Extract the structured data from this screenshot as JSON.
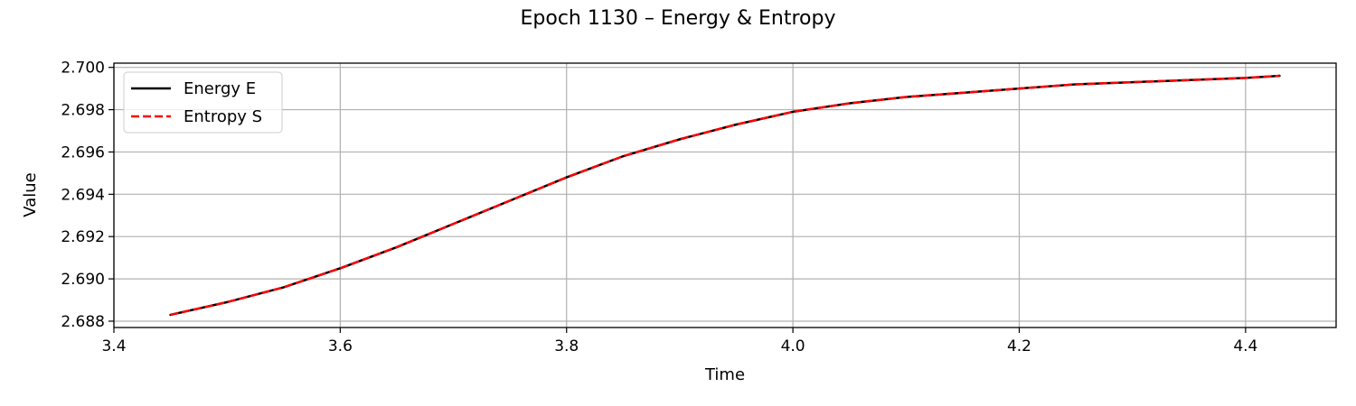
{
  "chart_data": {
    "type": "line",
    "title": "Epoch 1130 – Energy & Entropy",
    "xlabel": "Time",
    "ylabel": "Value",
    "xlim": [
      3.4,
      4.48
    ],
    "ylim": [
      2.6877,
      2.7002
    ],
    "xticks": [
      3.4,
      3.6,
      3.8,
      4.0,
      4.2,
      4.4
    ],
    "xtick_labels": [
      "3.4",
      "3.6",
      "3.8",
      "4.0",
      "4.2",
      "4.4"
    ],
    "yticks": [
      2.688,
      2.69,
      2.692,
      2.694,
      2.696,
      2.698,
      2.7
    ],
    "ytick_labels": [
      "2.688",
      "2.690",
      "2.692",
      "2.694",
      "2.696",
      "2.698",
      "2.700"
    ],
    "grid": true,
    "legend_position": "top-left",
    "series": [
      {
        "name": "Energy E",
        "color": "#000000",
        "style": "solid",
        "x": [
          3.45,
          3.5,
          3.55,
          3.6,
          3.65,
          3.7,
          3.75,
          3.8,
          3.85,
          3.9,
          3.95,
          4.0,
          4.05,
          4.1,
          4.15,
          4.2,
          4.25,
          4.3,
          4.35,
          4.4,
          4.43
        ],
        "y": [
          2.6883,
          2.6889,
          2.6896,
          2.6905,
          2.6915,
          2.6926,
          2.6937,
          2.6948,
          2.6958,
          2.6966,
          2.6973,
          2.6979,
          2.6983,
          2.6986,
          2.6988,
          2.699,
          2.6992,
          2.6993,
          2.6994,
          2.6995,
          2.6996
        ]
      },
      {
        "name": "Entropy S",
        "color": "#ff0000",
        "style": "dashed",
        "x": [
          3.45,
          3.5,
          3.55,
          3.6,
          3.65,
          3.7,
          3.75,
          3.8,
          3.85,
          3.9,
          3.95,
          4.0,
          4.05,
          4.1,
          4.15,
          4.2,
          4.25,
          4.3,
          4.35,
          4.4,
          4.43
        ],
        "y": [
          2.6883,
          2.6889,
          2.6896,
          2.6905,
          2.6915,
          2.6926,
          2.6937,
          2.6948,
          2.6958,
          2.6966,
          2.6973,
          2.6979,
          2.6983,
          2.6986,
          2.6988,
          2.699,
          2.6992,
          2.6993,
          2.6994,
          2.6995,
          2.6996
        ]
      }
    ]
  }
}
